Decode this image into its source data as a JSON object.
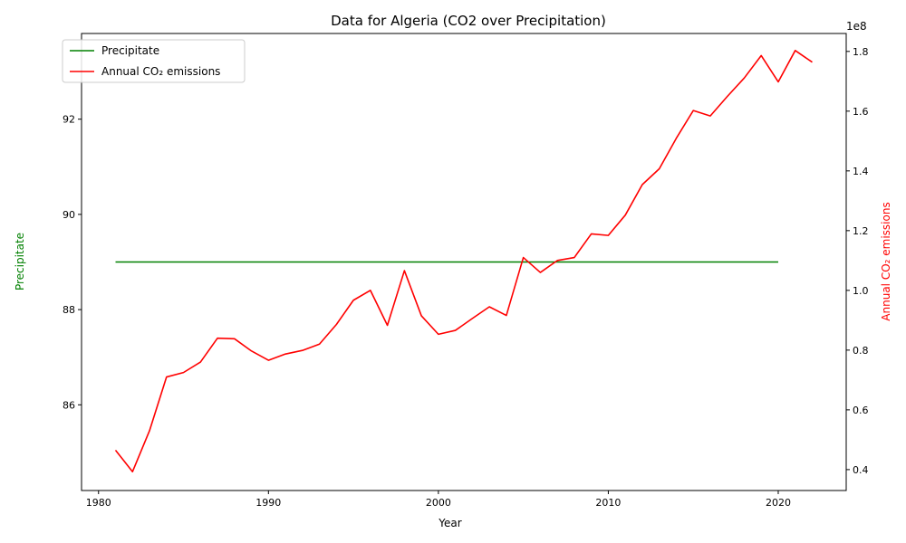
{
  "chart_data": {
    "type": "line",
    "title": "Data for Algeria (CO2 over Precipitation)",
    "xlabel": "Year",
    "ylabel_left": "Precipitate",
    "ylabel_right": "Annual CO₂ emissions",
    "right_axis_offset_label": "1e8",
    "xlim": [
      1979,
      2024
    ],
    "ylim_left": [
      84.2,
      93.8
    ],
    "ylim_right": [
      0.33,
      1.86
    ],
    "x_ticks": [
      1980,
      1990,
      2000,
      2010,
      2020
    ],
    "y_ticks_left": [
      86,
      88,
      90,
      92
    ],
    "y_ticks_right": [
      0.4,
      0.6,
      0.8,
      1.0,
      1.2,
      1.4,
      1.6,
      1.8
    ],
    "grid": false,
    "legend_position": "upper-left",
    "colors": {
      "precipitate": "#008000",
      "co2": "#ff0000"
    },
    "series": [
      {
        "name": "Precipitate",
        "axis": "left",
        "x": [
          1981,
          2020
        ],
        "values": [
          89,
          89
        ]
      },
      {
        "name": "Annual CO₂ emissions",
        "axis": "right",
        "x": [
          1981,
          1982,
          1983,
          1984,
          1985,
          1986,
          1987,
          1988,
          1989,
          1990,
          1991,
          1992,
          1993,
          1994,
          1995,
          1996,
          1997,
          1998,
          1999,
          2000,
          2001,
          2002,
          2003,
          2004,
          2005,
          2006,
          2007,
          2008,
          2009,
          2010,
          2011,
          2012,
          2013,
          2014,
          2015,
          2016,
          2017,
          2018,
          2019,
          2020,
          2021,
          2022
        ],
        "values": [
          0.465,
          0.393,
          0.53,
          0.71,
          0.725,
          0.76,
          0.84,
          0.838,
          0.797,
          0.766,
          0.787,
          0.799,
          0.82,
          0.886,
          0.967,
          1.0,
          0.883,
          1.066,
          0.915,
          0.853,
          0.866,
          0.906,
          0.945,
          0.916,
          1.11,
          1.06,
          1.1,
          1.11,
          1.189,
          1.184,
          1.252,
          1.354,
          1.407,
          1.509,
          1.602,
          1.584,
          1.649,
          1.711,
          1.786,
          1.698,
          1.803,
          1.764
        ]
      }
    ]
  }
}
